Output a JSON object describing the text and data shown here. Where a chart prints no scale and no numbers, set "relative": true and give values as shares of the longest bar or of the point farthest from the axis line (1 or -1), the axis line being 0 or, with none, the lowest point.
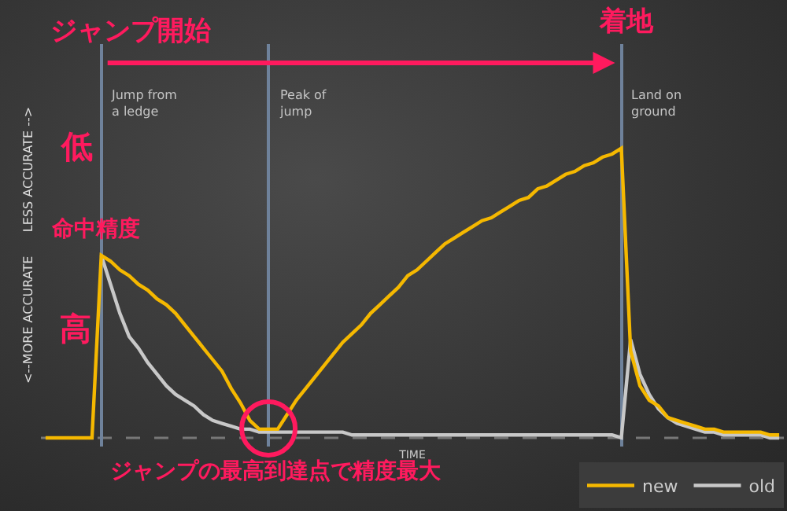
{
  "chart_data": {
    "type": "line",
    "relative": true,
    "grid": "x",
    "legend": "bottom right",
    "marker": "none",
    "line_style": "solid",
    "xlabel": "TIME",
    "ylabel": "<--MORE ACCURATE      LESS ACCURATE -->",
    "categories": [
      null,
      null,
      null,
      null,
      null,
      null,
      null,
      null,
      null,
      null,
      null,
      null,
      null,
      null,
      null,
      null,
      null,
      null,
      null,
      null,
      null,
      null,
      null,
      null,
      null,
      null,
      null,
      null,
      null,
      null,
      null,
      null,
      null,
      null,
      null,
      null,
      null,
      null,
      null,
      null,
      null,
      null,
      null,
      null,
      null,
      null,
      null,
      null,
      null,
      null,
      null,
      null,
      null,
      null,
      null,
      null,
      null,
      null,
      null,
      null,
      null,
      null,
      null,
      null,
      null,
      null,
      null,
      null,
      null,
      null,
      null,
      null,
      null,
      null,
      null,
      null,
      null,
      null,
      null,
      null
    ],
    "series": [
      {
        "name": "new",
        "color": "#f5b800",
        "values": [
          0,
          0,
          0,
          0,
          0,
          0,
          0.63,
          0.61,
          0.58,
          0.56,
          0.53,
          0.51,
          0.48,
          0.46,
          0.43,
          0.39,
          0.35,
          0.31,
          0.27,
          0.23,
          0.17,
          0.12,
          0.06,
          0.03,
          0.03,
          0.03,
          0.08,
          0.13,
          0.17,
          0.21,
          0.25,
          0.29,
          0.33,
          0.36,
          0.39,
          0.43,
          0.46,
          0.49,
          0.52,
          0.56,
          0.58,
          0.61,
          0.64,
          0.67,
          0.69,
          0.71,
          0.73,
          0.75,
          0.76,
          0.78,
          0.8,
          0.82,
          0.83,
          0.86,
          0.87,
          0.89,
          0.91,
          0.92,
          0.94,
          0.95,
          0.97,
          0.98,
          1,
          0.3,
          0.18,
          0.13,
          0.11,
          0.07,
          0.06,
          0.05,
          0.04,
          0.03,
          0.03,
          0.02,
          0.02,
          0.02,
          0.02,
          0.02,
          0.01,
          0.01
        ]
      },
      {
        "name": "old",
        "color": "#c8c8c8",
        "values": [
          null,
          null,
          null,
          null,
          null,
          null,
          0.63,
          0.53,
          0.43,
          0.35,
          0.31,
          0.26,
          0.22,
          0.18,
          0.15,
          0.13,
          0.11,
          0.08,
          0.06,
          0.05,
          0.04,
          0.03,
          0.03,
          0.02,
          0.02,
          0.02,
          0.02,
          0.02,
          0.02,
          0.02,
          0.02,
          0.02,
          0.02,
          0.01,
          0.01,
          0.01,
          0.01,
          0.01,
          0.01,
          0.01,
          0.01,
          0.01,
          0.01,
          0.01,
          0.01,
          0.01,
          0.01,
          0.01,
          0.01,
          0.01,
          0.01,
          0.01,
          0.01,
          0.01,
          0.01,
          0.01,
          0.01,
          0.01,
          0.01,
          0.01,
          0.01,
          0.01,
          0,
          0.34,
          0.22,
          0.15,
          0.1,
          0.07,
          0.05,
          0.04,
          0.03,
          0.02,
          0.02,
          0.01,
          0.01,
          0.01,
          0.01,
          0.01,
          0,
          0
        ]
      }
    ],
    "annotations": [
      "ジャンプ開始",
      "着地",
      "低",
      "命中精度",
      "高",
      "ジャンプの最高到達点で精度最大",
      "Jump from\na ledge",
      "Peak of\njump",
      "Land on\nground"
    ]
  }
}
